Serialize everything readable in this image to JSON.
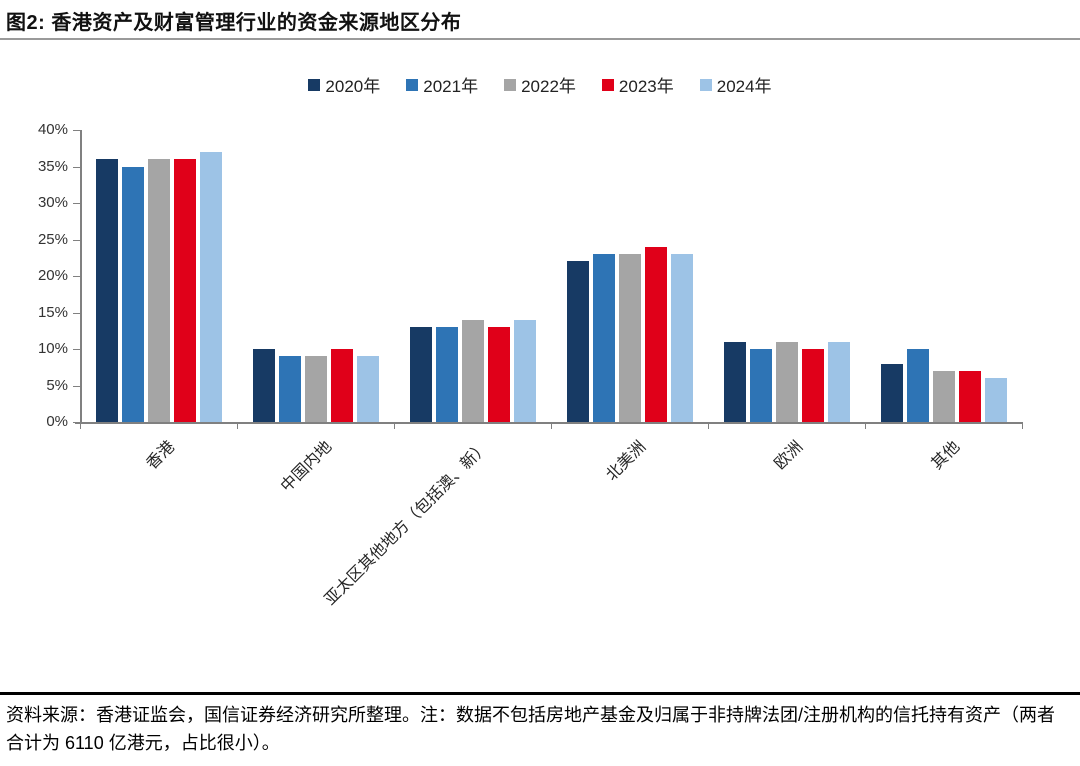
{
  "header": {
    "title": "图2: 香港资产及财富管理行业的资金来源地区分布"
  },
  "chart_data": {
    "type": "bar",
    "title": "香港资产及财富管理行业的资金来源地区分布",
    "categories": [
      "香港",
      "中国内地",
      "亚太区其他地方（包括澳、新）",
      "北美洲",
      "欧洲",
      "其他"
    ],
    "series": [
      {
        "name": "2020年",
        "color": "#173A64",
        "values": [
          36,
          10,
          13,
          22,
          11,
          8
        ]
      },
      {
        "name": "2021年",
        "color": "#2E74B5",
        "values": [
          35,
          9,
          13,
          23,
          10,
          10
        ]
      },
      {
        "name": "2022年",
        "color": "#A5A5A5",
        "values": [
          36,
          9,
          14,
          23,
          11,
          7
        ]
      },
      {
        "name": "2023年",
        "color": "#E00019",
        "values": [
          36,
          10,
          13,
          24,
          10,
          7
        ]
      },
      {
        "name": "2024年",
        "color": "#9DC3E6",
        "values": [
          37,
          9,
          14,
          23,
          11,
          6
        ]
      }
    ],
    "y_ticks": [
      "40%",
      "35%",
      "30%",
      "25%",
      "20%",
      "15%",
      "10%",
      "5%",
      "0%"
    ],
    "ylim": [
      0,
      40
    ],
    "y_unit": "%",
    "grid": false,
    "legend_position": "top",
    "axis_color": "#808080"
  },
  "footer": {
    "source_note": "资料来源：香港证监会，国信证券经济研究所整理。注：数据不包括房地产基金及归属于非持牌法团/注册机构的信托持有资产（两者合计为 6110 亿港元，占比很小）。"
  }
}
